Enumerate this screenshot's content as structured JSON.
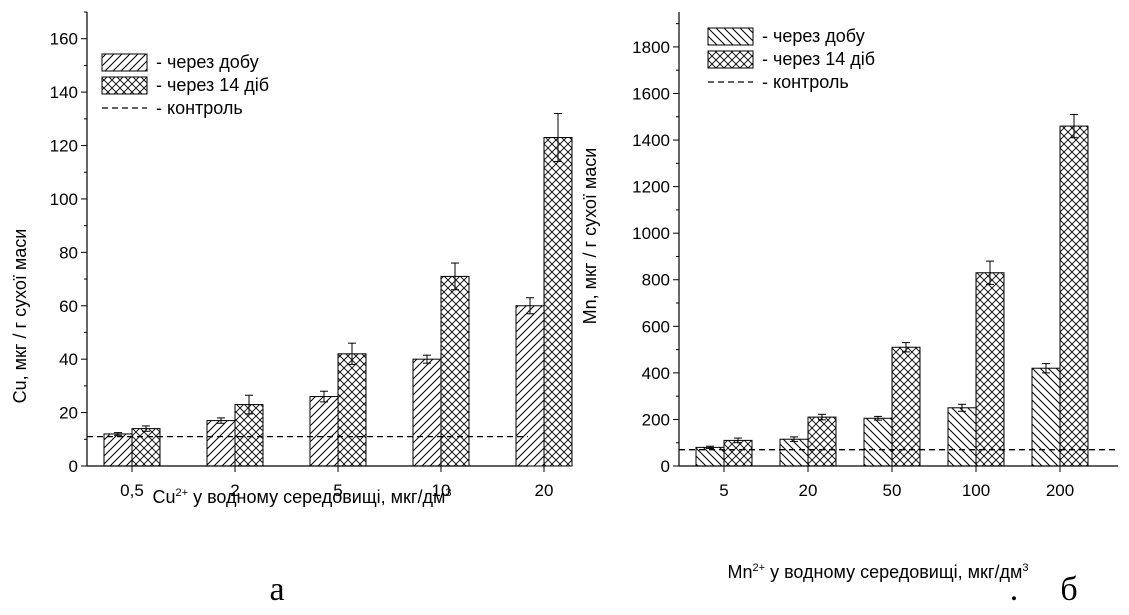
{
  "chart_data": [
    {
      "type": "bar",
      "panel_label": "а",
      "ylabel": "Cu,  мкг / г  сухої  маси",
      "xlabel": {
        "main": "Cu",
        "sup": "2+",
        "rest": " у водному середовищі, мкг/дм",
        "end_sup": "3"
      },
      "categories": [
        "0,5",
        "2",
        "5",
        "10",
        "20"
      ],
      "ylim": [
        0,
        170
      ],
      "yticks": [
        0,
        20,
        40,
        60,
        80,
        100,
        120,
        140,
        160
      ],
      "legend_position": "top-left",
      "series": [
        {
          "name": "- через добу",
          "pattern": "hatch-diagonal",
          "values": [
            12,
            17,
            26,
            40,
            60
          ],
          "errors": [
            0.5,
            1,
            2,
            1.5,
            3
          ]
        },
        {
          "name": "- через 14 діб",
          "pattern": "crosshatch",
          "values": [
            14,
            23,
            42,
            71,
            123
          ],
          "errors": [
            1,
            3.5,
            4,
            5,
            9
          ]
        }
      ],
      "reference_line": {
        "name": "- контроль",
        "value": 11,
        "style": "dashed"
      }
    },
    {
      "type": "bar",
      "panel_label": "б",
      "extra_mark": ".",
      "ylabel": "Mn,  мкг / г  сухої  маси",
      "xlabel": {
        "main": "Mn",
        "sup": "2+",
        "rest": " у водному середовищі, мкг/дм",
        "end_sup": "3"
      },
      "categories": [
        "5",
        "20",
        "50",
        "100",
        "200"
      ],
      "ylim": [
        0,
        1950
      ],
      "yticks": [
        0,
        200,
        400,
        600,
        800,
        1000,
        1200,
        1400,
        1600,
        1800
      ],
      "legend_position": "top-left",
      "series": [
        {
          "name": "- через добу",
          "pattern": "hatch-backslash",
          "values": [
            80,
            115,
            205,
            250,
            420
          ],
          "errors": [
            5,
            10,
            8,
            15,
            20
          ]
        },
        {
          "name": "- через 14 діб",
          "pattern": "crosshatch",
          "values": [
            110,
            210,
            510,
            830,
            1460
          ],
          "errors": [
            10,
            12,
            20,
            50,
            50
          ]
        }
      ],
      "reference_line": {
        "name": "- контроль",
        "value": 70,
        "style": "dashed"
      }
    }
  ]
}
